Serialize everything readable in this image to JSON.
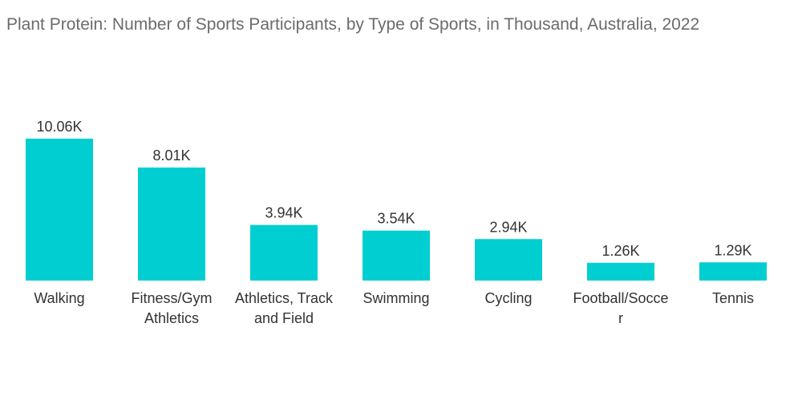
{
  "title": "Plant Protein: Number of Sports Participants, by Type of Sports, in Thousand, Australia, 2022",
  "colors": {
    "bar": "#00CED1",
    "text": "#333333",
    "title": "#6b6b6b"
  },
  "chart_data": {
    "type": "bar",
    "title": "Plant Protein: Number of Sports Participants, by Type of Sports, in Thousand, Australia, 2022",
    "categories": [
      "Walking",
      "Fitness/Gym Athletics",
      "Athletics, Track and Field",
      "Swimming",
      "Cycling",
      "Football/Soccer",
      "Tennis"
    ],
    "category_lines": [
      [
        "Walking"
      ],
      [
        "Fitness/Gym",
        "Athletics"
      ],
      [
        "Athletics, Track",
        "and Field"
      ],
      [
        "Swimming"
      ],
      [
        "Cycling"
      ],
      [
        "Football/Socce",
        "r"
      ],
      [
        "Tennis"
      ]
    ],
    "values": [
      10.06,
      8.01,
      3.94,
      3.54,
      2.94,
      1.26,
      1.29
    ],
    "value_labels": [
      "10.06K",
      "8.01K",
      "3.94K",
      "3.54K",
      "2.94K",
      "1.26K",
      "1.29K"
    ],
    "xlabel": "",
    "ylabel": "",
    "grid": false,
    "legend": "none"
  }
}
